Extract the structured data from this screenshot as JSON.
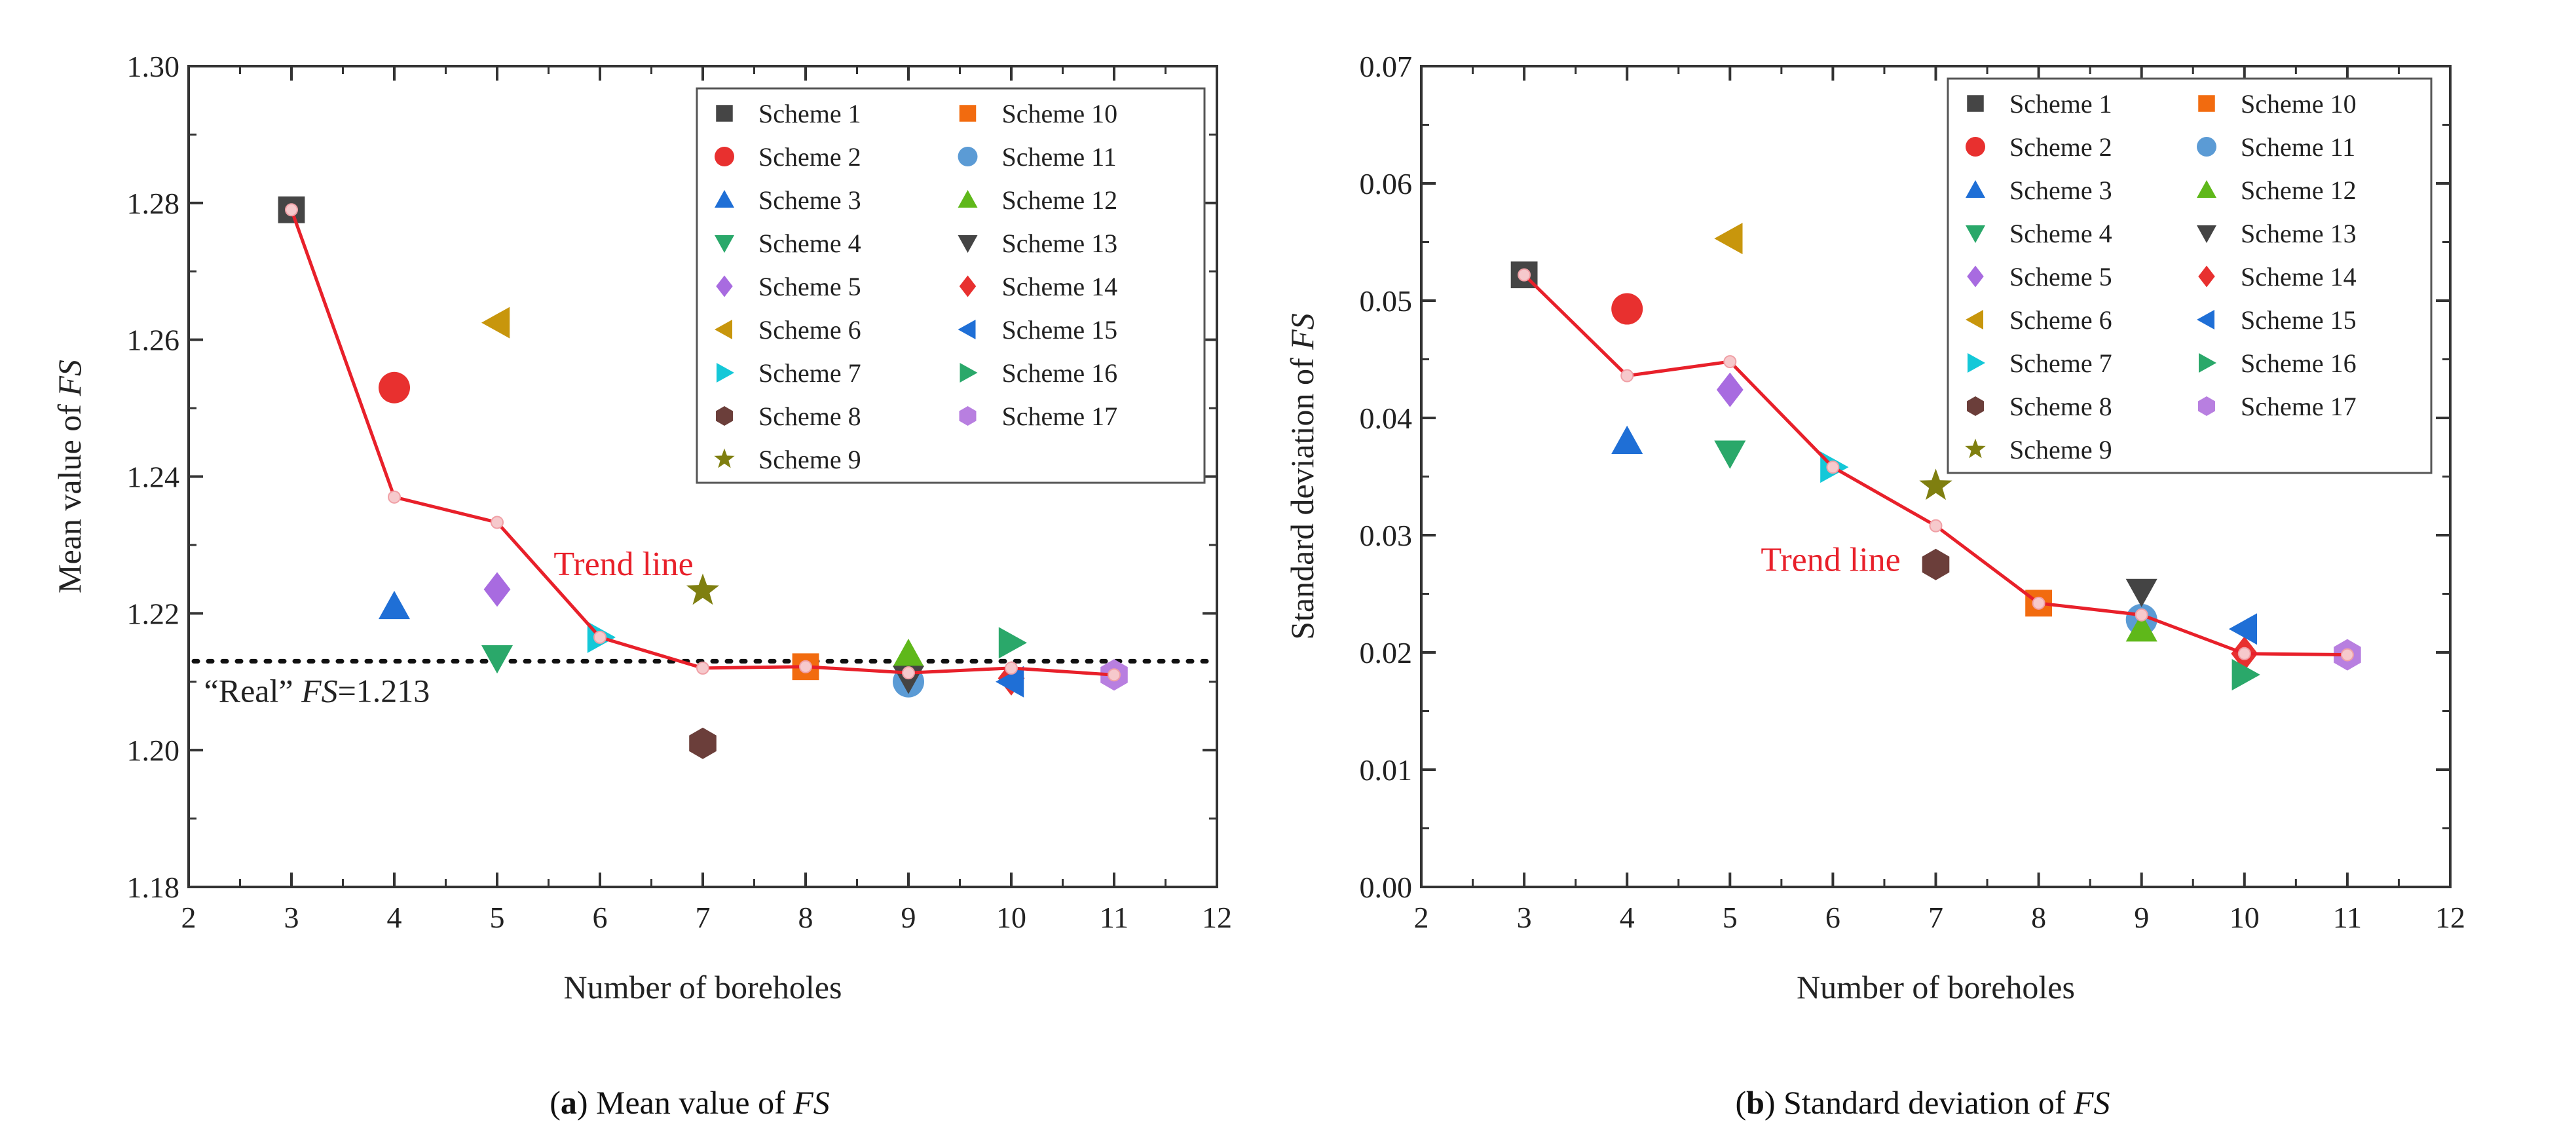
{
  "chart_data": [
    {
      "type": "scatter",
      "id": "a",
      "caption": {
        "label": "a",
        "text": "Mean value of",
        "var": "FS"
      },
      "xlabel": "Number of boreholes",
      "ylabel": {
        "text": "Mean value of ",
        "var": "FS"
      },
      "xlim": [
        2,
        12
      ],
      "ylim": [
        1.18,
        1.3
      ],
      "xticks": [
        2,
        3,
        4,
        5,
        6,
        7,
        8,
        9,
        10,
        11,
        12
      ],
      "yticks": [
        1.18,
        1.2,
        1.22,
        1.24,
        1.26,
        1.28,
        1.3
      ],
      "ytick_decimals": 2,
      "legend_position": "top-right",
      "reference_line": {
        "y": 1.213,
        "label_pre": "“Real” ",
        "label_var": "FS",
        "label_post": "=1.213"
      },
      "trend": {
        "label": "Trend line",
        "color": "#e8202a",
        "x": [
          3,
          4,
          5,
          6,
          7,
          8,
          9,
          10,
          11
        ],
        "y": [
          1.279,
          1.237,
          1.2333,
          1.2165,
          1.212,
          1.2122,
          1.2113,
          1.212,
          1.211
        ]
      },
      "series": [
        {
          "name": "Scheme 1",
          "marker": "square",
          "color": "#454545",
          "x": 3,
          "y": 1.279
        },
        {
          "name": "Scheme 2",
          "marker": "circle",
          "color": "#e8302f",
          "x": 4,
          "y": 1.253
        },
        {
          "name": "Scheme 3",
          "marker": "triangle-up",
          "color": "#1f6fd6",
          "x": 4,
          "y": 1.221
        },
        {
          "name": "Scheme 4",
          "marker": "triangle-down",
          "color": "#2aa86a",
          "x": 5,
          "y": 1.2135
        },
        {
          "name": "Scheme 5",
          "marker": "diamond",
          "color": "#a86be0",
          "x": 5,
          "y": 1.2235
        },
        {
          "name": "Scheme 6",
          "marker": "triangle-left",
          "color": "#c8960c",
          "x": 5,
          "y": 1.2625
        },
        {
          "name": "Scheme 7",
          "marker": "triangle-right",
          "color": "#14c8d8",
          "x": 6,
          "y": 1.2165
        },
        {
          "name": "Scheme 8",
          "marker": "hexagon",
          "color": "#6b3e3a",
          "x": 7,
          "y": 1.201
        },
        {
          "name": "Scheme 9",
          "marker": "star",
          "color": "#7f7f10",
          "x": 7,
          "y": 1.2233
        },
        {
          "name": "Scheme 10",
          "marker": "square",
          "color": "#f26b0f",
          "x": 8,
          "y": 1.2122
        },
        {
          "name": "Scheme 11",
          "marker": "circle",
          "color": "#5b9bd5",
          "x": 9,
          "y": 1.21
        },
        {
          "name": "Scheme 12",
          "marker": "triangle-up",
          "color": "#5fb81a",
          "x": 9,
          "y": 1.214
        },
        {
          "name": "Scheme 13",
          "marker": "triangle-down",
          "color": "#444444",
          "x": 9,
          "y": 1.2105
        },
        {
          "name": "Scheme 14",
          "marker": "diamond",
          "color": "#e8302f",
          "x": 10,
          "y": 1.2105
        },
        {
          "name": "Scheme 15",
          "marker": "triangle-left",
          "color": "#1f6fd6",
          "x": 10,
          "y": 1.21
        },
        {
          "name": "Scheme 16",
          "marker": "triangle-right",
          "color": "#2aa86a",
          "x": 10,
          "y": 1.2157
        },
        {
          "name": "Scheme 17",
          "marker": "hexagon",
          "color": "#b87fe0",
          "x": 11,
          "y": 1.211
        }
      ]
    },
    {
      "type": "scatter",
      "id": "b",
      "caption": {
        "label": "b",
        "text": "Standard deviation of",
        "var": "FS"
      },
      "xlabel": "Number of boreholes",
      "ylabel": {
        "text": "Standard deviation of ",
        "var": "FS"
      },
      "xlim": [
        2,
        12
      ],
      "ylim": [
        0.0,
        0.07
      ],
      "xticks": [
        2,
        3,
        4,
        5,
        6,
        7,
        8,
        9,
        10,
        11,
        12
      ],
      "yticks": [
        0.0,
        0.01,
        0.02,
        0.03,
        0.04,
        0.05,
        0.06,
        0.07
      ],
      "ytick_decimals": 2,
      "legend_position": "top-right",
      "trend": {
        "label": "Trend line",
        "color": "#e8202a",
        "x": [
          3,
          4,
          5,
          6,
          7,
          8,
          9,
          10,
          11
        ],
        "y": [
          0.0522,
          0.0436,
          0.0448,
          0.0358,
          0.0308,
          0.0242,
          0.0232,
          0.0199,
          0.0198
        ]
      },
      "series": [
        {
          "name": "Scheme 1",
          "marker": "square",
          "color": "#454545",
          "x": 3,
          "y": 0.0522
        },
        {
          "name": "Scheme 2",
          "marker": "circle",
          "color": "#e8302f",
          "x": 4,
          "y": 0.0493
        },
        {
          "name": "Scheme 3",
          "marker": "triangle-up",
          "color": "#1f6fd6",
          "x": 4,
          "y": 0.038
        },
        {
          "name": "Scheme 4",
          "marker": "triangle-down",
          "color": "#2aa86a",
          "x": 5,
          "y": 0.037
        },
        {
          "name": "Scheme 5",
          "marker": "diamond",
          "color": "#a86be0",
          "x": 5,
          "y": 0.0424
        },
        {
          "name": "Scheme 6",
          "marker": "triangle-left",
          "color": "#c8960c",
          "x": 5,
          "y": 0.0553
        },
        {
          "name": "Scheme 7",
          "marker": "triangle-right",
          "color": "#14c8d8",
          "x": 6,
          "y": 0.0358
        },
        {
          "name": "Scheme 8",
          "marker": "hexagon",
          "color": "#6b3e3a",
          "x": 7,
          "y": 0.0275
        },
        {
          "name": "Scheme 9",
          "marker": "star",
          "color": "#7f7f10",
          "x": 7,
          "y": 0.0342
        },
        {
          "name": "Scheme 10",
          "marker": "square",
          "color": "#f26b0f",
          "x": 8,
          "y": 0.0242
        },
        {
          "name": "Scheme 11",
          "marker": "circle",
          "color": "#5b9bd5",
          "x": 9,
          "y": 0.0228
        },
        {
          "name": "Scheme 12",
          "marker": "triangle-up",
          "color": "#5fb81a",
          "x": 9,
          "y": 0.022
        },
        {
          "name": "Scheme 13",
          "marker": "triangle-down",
          "color": "#444444",
          "x": 9,
          "y": 0.0252
        },
        {
          "name": "Scheme 14",
          "marker": "diamond",
          "color": "#e8302f",
          "x": 10,
          "y": 0.0199
        },
        {
          "name": "Scheme 15",
          "marker": "triangle-left",
          "color": "#1f6fd6",
          "x": 10,
          "y": 0.022
        },
        {
          "name": "Scheme 16",
          "marker": "triangle-right",
          "color": "#2aa86a",
          "x": 10,
          "y": 0.0181
        },
        {
          "name": "Scheme 17",
          "marker": "hexagon",
          "color": "#b87fe0",
          "x": 11,
          "y": 0.0198
        }
      ]
    }
  ]
}
